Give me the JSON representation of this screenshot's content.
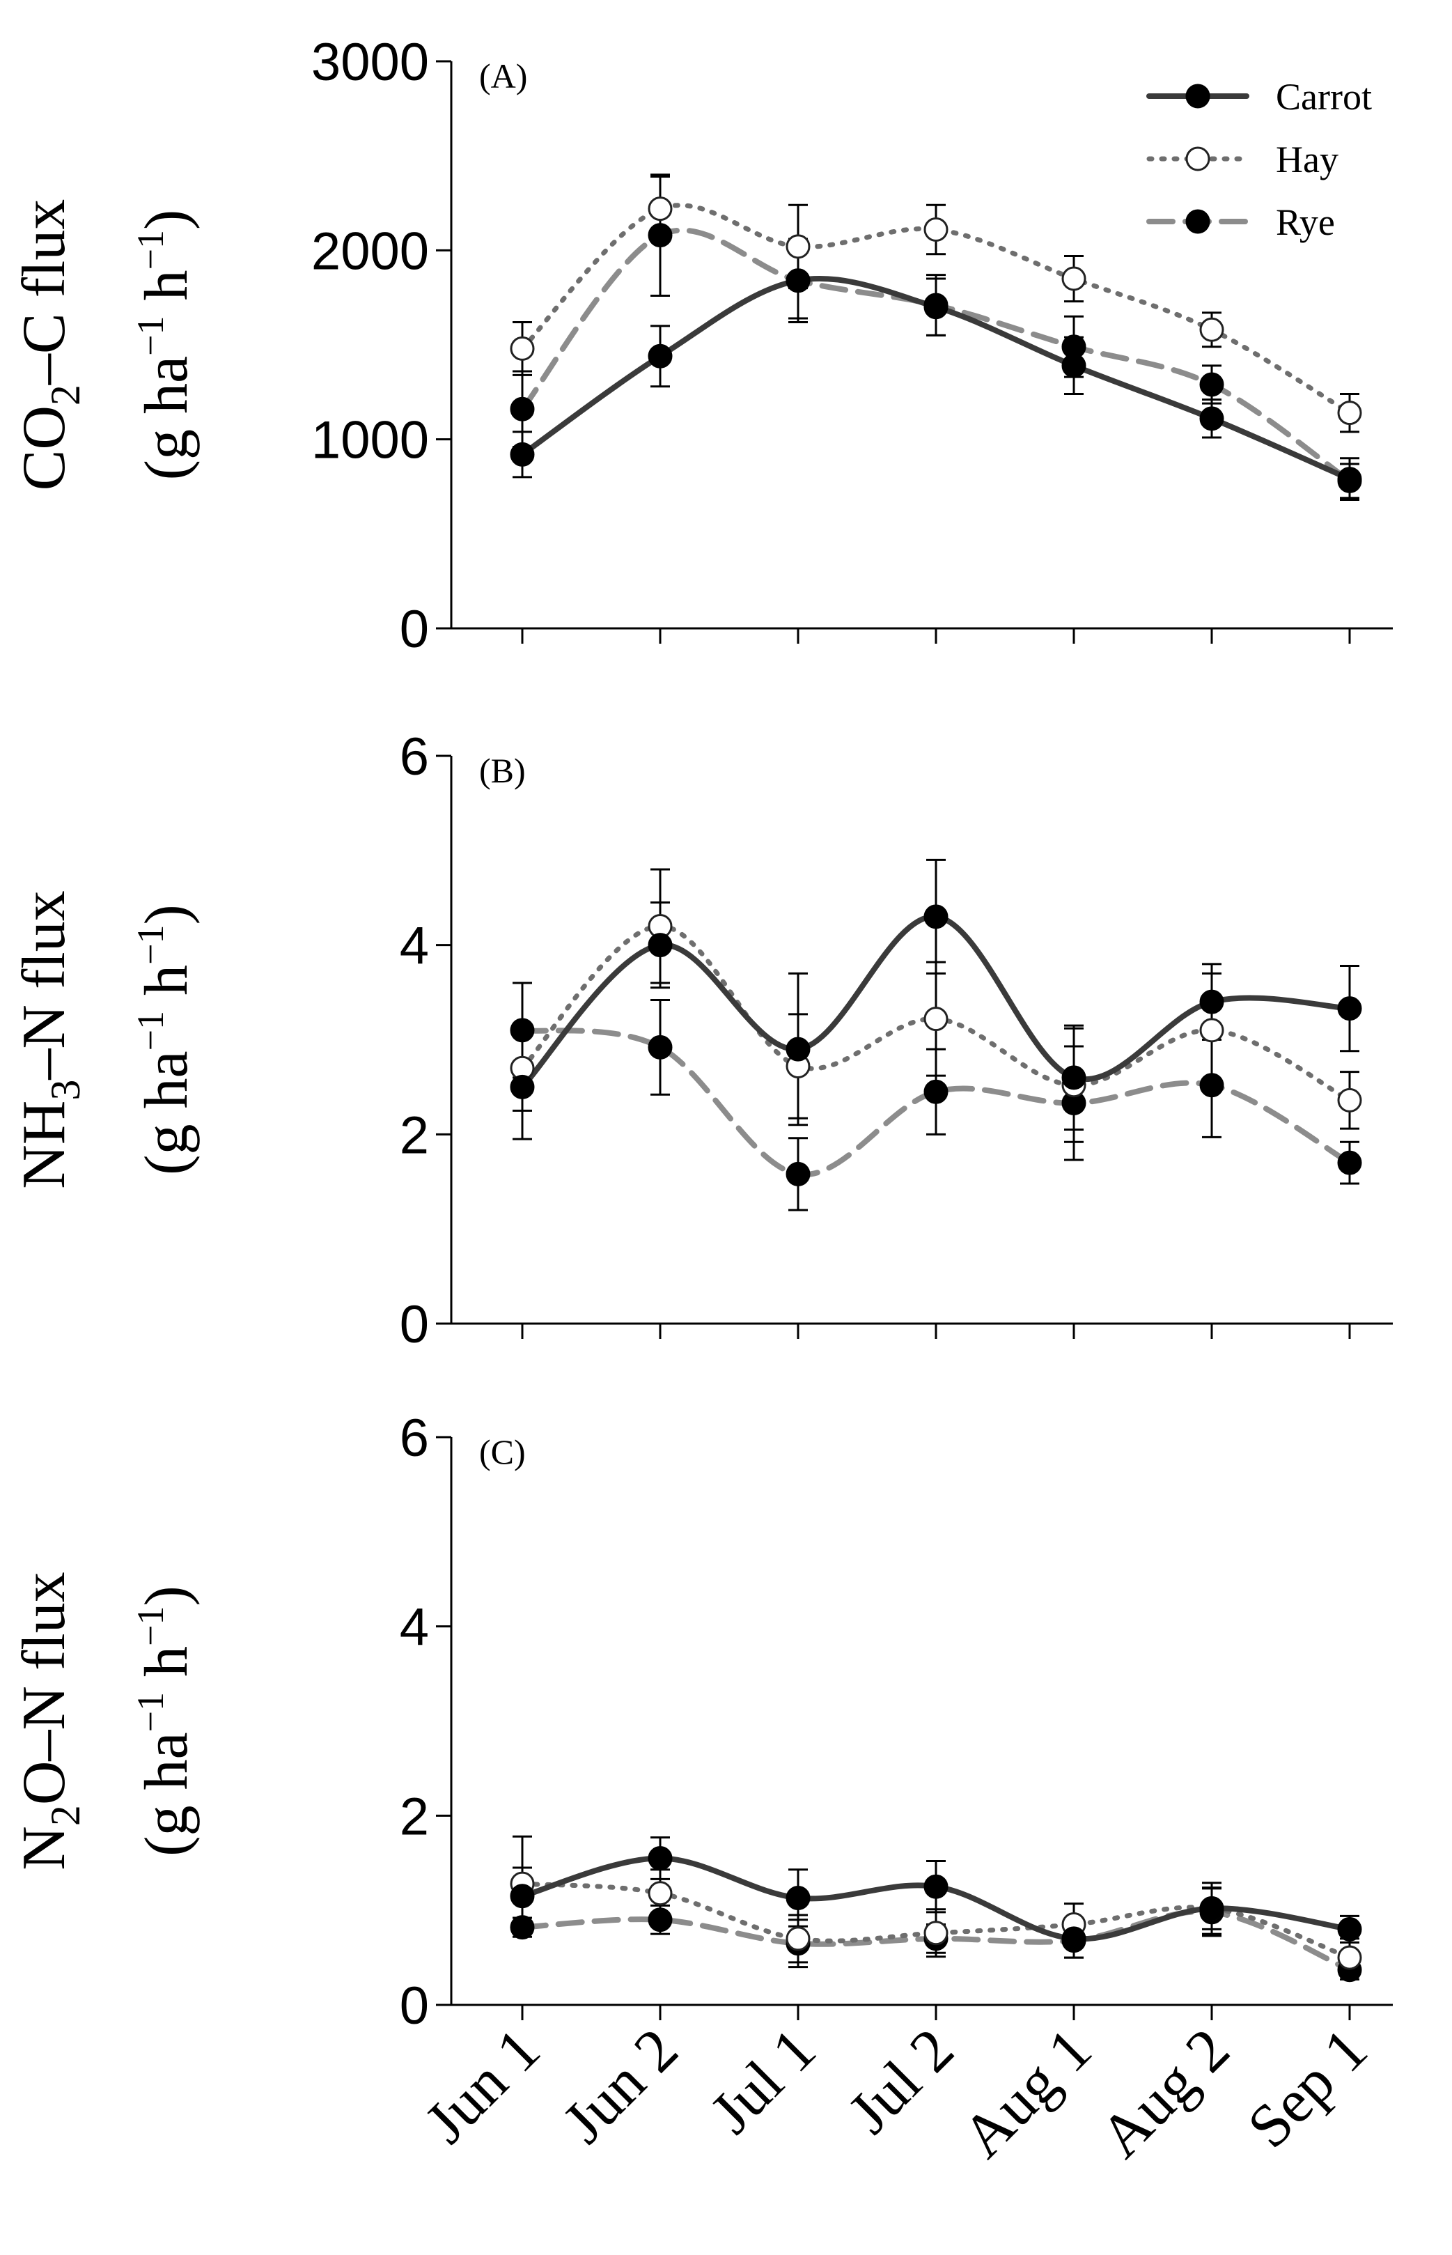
{
  "chart_data": {
    "type": "line",
    "categories": [
      "Jun 1",
      "Jun 2",
      "Jul 1",
      "Jul 2",
      "Aug 1",
      "Aug 2",
      "Sep 1"
    ],
    "legend": {
      "position": "top-right",
      "entries": [
        {
          "name": "Carrot",
          "marker": "filled",
          "line": "solid",
          "color": "#3a3a3a"
        },
        {
          "name": "Hay",
          "marker": "open",
          "line": "dotted",
          "color": "#6e6e6e"
        },
        {
          "name": "Rye",
          "marker": "filled",
          "line": "dashed",
          "color": "#8c8c8c"
        }
      ]
    },
    "panels": [
      {
        "id": "A",
        "label": "(A)",
        "ylabel": {
          "species": "CO",
          "sub": "2",
          "rest": "–C flux",
          "unit_open": "(g ha",
          "unit_exp1": "−1",
          "unit_mid": " h",
          "unit_exp2": "−1",
          "unit_close": ")"
        },
        "ylim": [
          0,
          3000
        ],
        "yticks": [
          0,
          1000,
          2000,
          3000
        ],
        "ytick_labels": [
          "0",
          "1000",
          "2000",
          "3000"
        ],
        "series": [
          {
            "name": "Carrot",
            "values": [
              920,
              1440,
              1840,
              1700,
              1390,
              1110,
              790
            ],
            "err": [
              120,
              160,
              220,
              150,
              150,
              100,
              110
            ]
          },
          {
            "name": "Hay",
            "values": [
              1480,
              2220,
              2020,
              2110,
              1850,
              1580,
              1140
            ],
            "err": [
              140,
              170,
              220,
              130,
              120,
              90,
              100
            ]
          },
          {
            "name": "Rye",
            "values": [
              1160,
              2080,
              1840,
              1710,
              1490,
              1290,
              780
            ],
            "err": [
              200,
              320,
              200,
              160,
              160,
              100,
              90
            ]
          }
        ]
      },
      {
        "id": "B",
        "label": "(B)",
        "ylabel": {
          "species": "NH",
          "sub": "3",
          "rest": "–N flux",
          "unit_open": "(g ha",
          "unit_exp1": "−1",
          "unit_mid": " h",
          "unit_exp2": "−1",
          "unit_close": ")"
        },
        "ylim": [
          0,
          6
        ],
        "yticks": [
          0,
          2,
          4,
          6
        ],
        "ytick_labels": [
          "0",
          "2",
          "4",
          "6"
        ],
        "series": [
          {
            "name": "Carrot",
            "values": [
              2.5,
              4.0,
              2.9,
              4.3,
              2.6,
              3.4,
              3.33
            ],
            "err": [
              0.55,
              0.45,
              0.8,
              0.6,
              0.55,
              0.4,
              0.45
            ]
          },
          {
            "name": "Hay",
            "values": [
              2.7,
              4.2,
              2.72,
              3.22,
              2.52,
              3.1,
              2.36
            ],
            "err": [
              0.45,
              0.6,
              0.55,
              0.6,
              0.6,
              0.6,
              0.3
            ]
          },
          {
            "name": "Rye",
            "values": [
              3.1,
              2.92,
              1.58,
              2.45,
              2.33,
              2.52,
              1.7
            ],
            "err": [
              0.5,
              0.5,
              0.38,
              0.45,
              0.6,
              0.55,
              0.22
            ]
          }
        ]
      },
      {
        "id": "C",
        "label": "(C)",
        "ylabel": {
          "species": "N",
          "sub": "2",
          "rest": "O–N flux",
          "unit_open": "(g ha",
          "unit_exp1": "−1",
          "unit_mid": " h",
          "unit_exp2": "−1",
          "unit_close": ")"
        },
        "ylim": [
          0,
          6
        ],
        "yticks": [
          0,
          2,
          4,
          6
        ],
        "ytick_labels": [
          "0",
          "2",
          "4",
          "6"
        ],
        "series": [
          {
            "name": "Carrot",
            "values": [
              1.15,
              1.55,
              1.13,
              1.25,
              0.7,
              1.02,
              0.8
            ],
            "err": [
              0.3,
              0.22,
              0.3,
              0.27,
              0.2,
              0.27,
              0.14
            ]
          },
          {
            "name": "Hay",
            "values": [
              1.28,
              1.18,
              0.7,
              0.76,
              0.85,
              1.02,
              0.5
            ],
            "err": [
              0.5,
              0.25,
              0.25,
              0.25,
              0.22,
              0.22,
              0.2
            ]
          },
          {
            "name": "Rye",
            "values": [
              0.82,
              0.9,
              0.65,
              0.7,
              0.68,
              0.98,
              0.37
            ],
            "err": [
              0.1,
              0.15,
              0.25,
              0.15,
              0.18,
              0.25,
              0.1
            ]
          }
        ]
      }
    ]
  }
}
